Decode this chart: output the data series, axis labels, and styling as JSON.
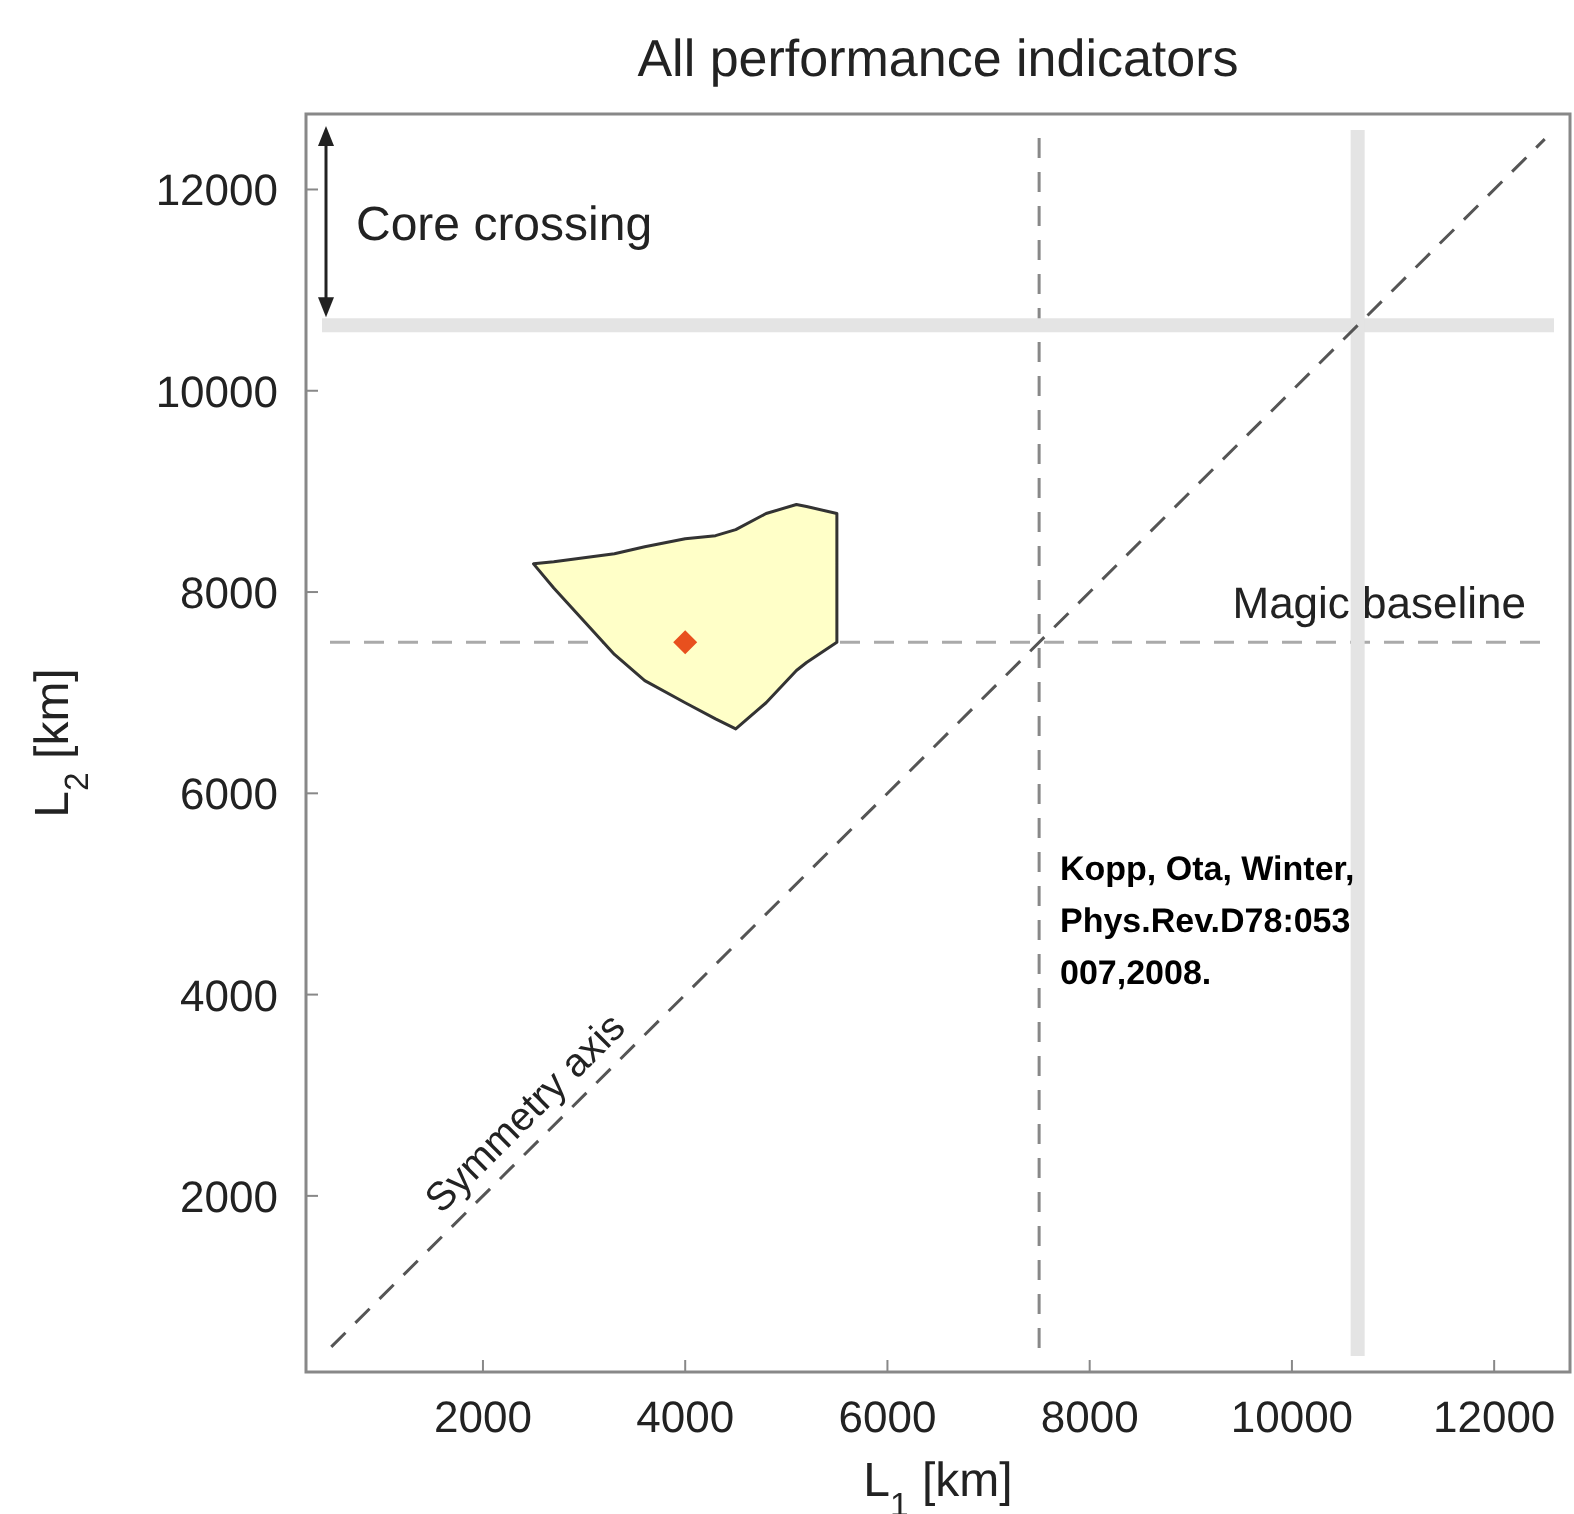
{
  "chart_data": {
    "type": "scatter",
    "title": "All performance indicators",
    "xlabel": "L$_{1}$  [km]",
    "ylabel": "L$_{2}$ [km]",
    "xlim": [
      250,
      12750
    ],
    "ylim": [
      250,
      12750
    ],
    "xticks": [
      2000,
      4000,
      6000,
      8000,
      10000,
      12000
    ],
    "yticks": [
      2000,
      4000,
      6000,
      8000,
      10000,
      12000
    ],
    "series": [
      {
        "type": "area",
        "color": "#ffffc8",
        "x": [
          2500,
          2700,
          3300,
          3600,
          4000,
          4300,
          4500,
          4800,
          5100,
          5200,
          5500,
          5500,
          5200,
          5100,
          4800,
          4500,
          4300,
          4000,
          3600,
          3300,
          2700
        ],
        "values": [
          8280,
          8300,
          8380,
          8450,
          8530,
          8560,
          8620,
          8780,
          8870,
          8850,
          8780,
          7500,
          7300,
          7220,
          6900,
          6640,
          6740,
          6900,
          7120,
          7380,
          8040
        ]
      },
      {
        "type": "line",
        "name": "Symmetry axis",
        "color": "#555555",
        "line_style": "dashed",
        "x": [
          500,
          12500
        ],
        "values": [
          500,
          12500
        ]
      },
      {
        "color": "#e8501e",
        "marker": "diamond",
        "x": [
          4000
        ],
        "values": [
          7500
        ]
      }
    ],
    "ref_lines": [
      {
        "axis": "y",
        "value": 7500,
        "label": "Magic baseline",
        "color": "#aaaaaa",
        "line_style": "dashed"
      },
      {
        "axis": "x",
        "value": 7500,
        "label": null,
        "color": "#888888",
        "line_style": "dashed"
      },
      {
        "axis": "y",
        "value": 10650,
        "label": null,
        "color": "#e4e4e4",
        "line_style": "solid"
      },
      {
        "axis": "x",
        "value": 10650,
        "label": null,
        "color": "#e4e4e4",
        "line_style": "solid"
      }
    ],
    "annotations": [
      "Core crossing",
      "Kopp, Ota, Winter,\nPhys.Rev.D78:053\n007,2008."
    ]
  }
}
